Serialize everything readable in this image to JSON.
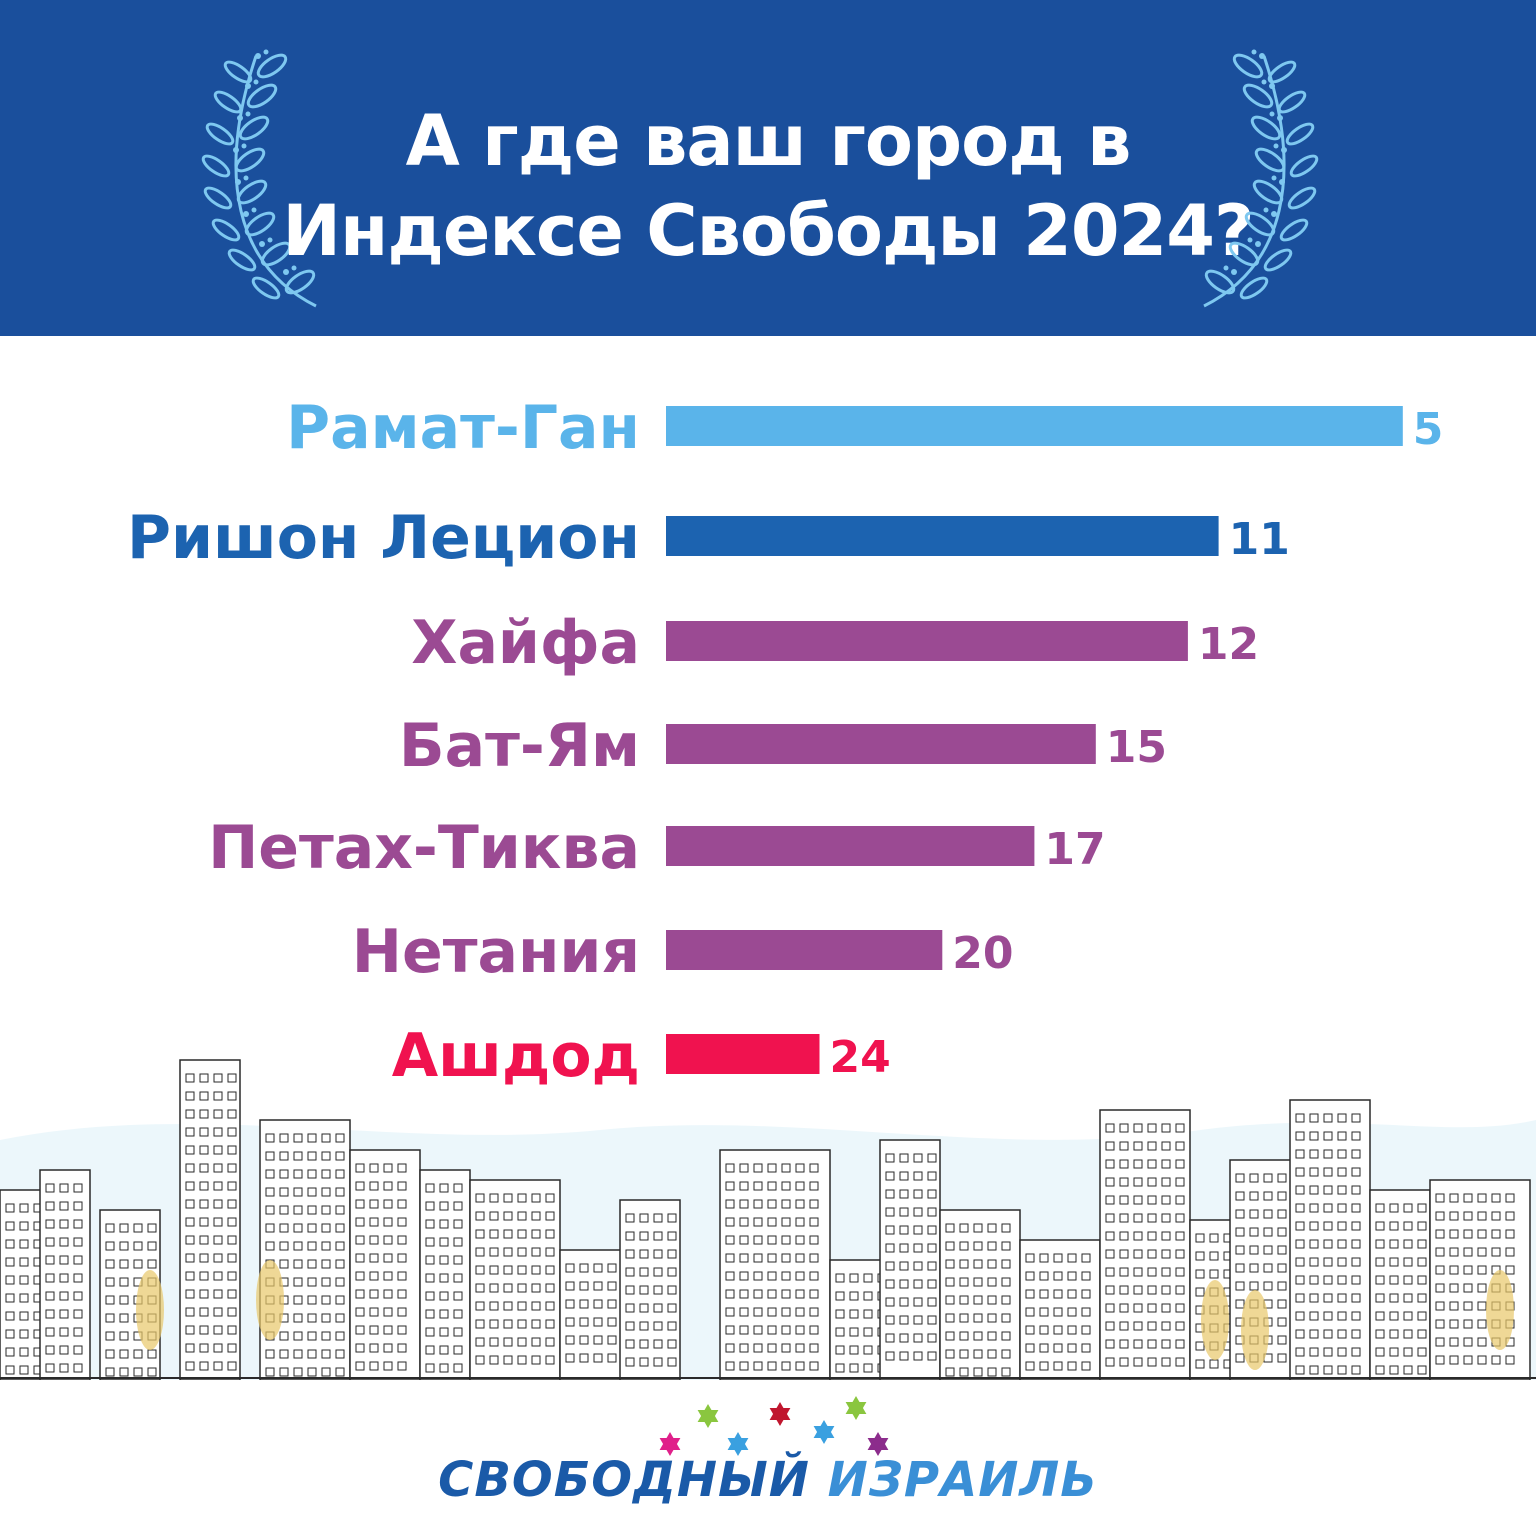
{
  "header": {
    "title_line1": "А где ваш город в",
    "title_line2": "Индексе Свободы 2024?",
    "background": "#1a4f9c"
  },
  "chart_data": {
    "type": "bar",
    "orientation": "horizontal",
    "title": "А где ваш город в Индексе Свободы 2024?",
    "categories": [
      "Рамат-Ган",
      "Ришон Лецион",
      "Хайфа",
      "Бат-Ям",
      "Петах-Тиква",
      "Нетания",
      "Ашдод"
    ],
    "values": [
      5,
      11,
      12,
      15,
      17,
      20,
      24
    ],
    "value_labels": [
      "5",
      "11",
      "12",
      "15",
      "17",
      "20",
      "24"
    ],
    "colors": [
      "#5ab4ea",
      "#1c63b0",
      "#9b4a93",
      "#9b4a93",
      "#9b4a93",
      "#9b4a93",
      "#f0124f"
    ],
    "grid": false,
    "legend": "none"
  },
  "footer": {
    "brand_word1": "СВОБОДНЫЙ",
    "brand_word2": "ИЗРАИЛЬ",
    "star_colors": [
      "#e0208a",
      "#8ac63f",
      "#3aa0e0",
      "#c0162e",
      "#3aa0e0",
      "#8ac63f",
      "#8c2c8c",
      "#f5a623"
    ]
  },
  "decor": {
    "laurel_color": "#7ec8f0",
    "skyline_stroke": "#2a2a2a"
  }
}
